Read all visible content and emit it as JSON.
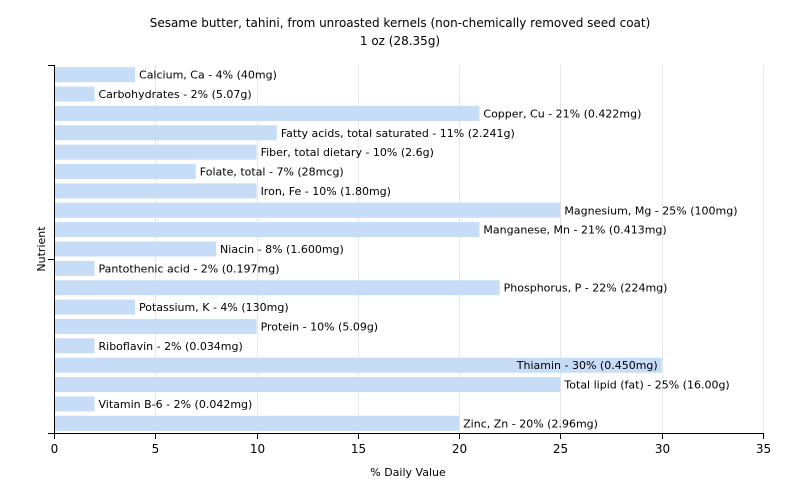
{
  "chart_data": {
    "type": "bar",
    "orientation": "horizontal",
    "title": "Sesame butter, tahini, from unroasted kernels (non-chemically removed seed coat)",
    "subtitle": "1 oz (28.35g)",
    "xlabel": "% Daily Value",
    "ylabel": "Nutrient",
    "xlim": [
      0,
      35
    ],
    "xticks": [
      "0",
      "5",
      "10",
      "15",
      "20",
      "25",
      "30",
      "35"
    ],
    "grid": true,
    "bar_color": "#c6dcf7",
    "categories": [
      "Calcium, Ca",
      "Carbohydrates",
      "Copper, Cu",
      "Fatty acids, total saturated",
      "Fiber, total dietary",
      "Folate, total",
      "Iron, Fe",
      "Magnesium, Mg",
      "Manganese, Mn",
      "Niacin",
      "Pantothenic acid",
      "Phosphorus, P",
      "Potassium, K",
      "Protein",
      "Riboflavin",
      "Thiamin",
      "Total lipid (fat)",
      "Vitamin B-6",
      "Zinc, Zn"
    ],
    "values": [
      4,
      2,
      21,
      11,
      10,
      7,
      10,
      25,
      21,
      8,
      2,
      22,
      4,
      10,
      2,
      30,
      25,
      2,
      20
    ],
    "labels": [
      "Calcium, Ca - 4% (40mg)",
      "Carbohydrates - 2% (5.07g)",
      "Copper, Cu - 21% (0.422mg)",
      "Fatty acids, total saturated - 11% (2.241g)",
      "Fiber, total dietary - 10% (2.6g)",
      "Folate, total - 7% (28mcg)",
      "Iron, Fe - 10% (1.80mg)",
      "Magnesium, Mg - 25% (100mg)",
      "Manganese, Mn - 21% (0.413mg)",
      "Niacin - 8% (1.600mg)",
      "Pantothenic acid - 2% (0.197mg)",
      "Phosphorus, P - 22% (224mg)",
      "Potassium, K - 4% (130mg)",
      "Protein - 10% (5.09g)",
      "Riboflavin - 2% (0.034mg)",
      "Thiamin - 30% (0.450mg)",
      "Total lipid (fat) - 25% (16.00g)",
      "Vitamin B-6 - 2% (0.042mg)",
      "Zinc, Zn - 20% (2.96mg)"
    ]
  }
}
